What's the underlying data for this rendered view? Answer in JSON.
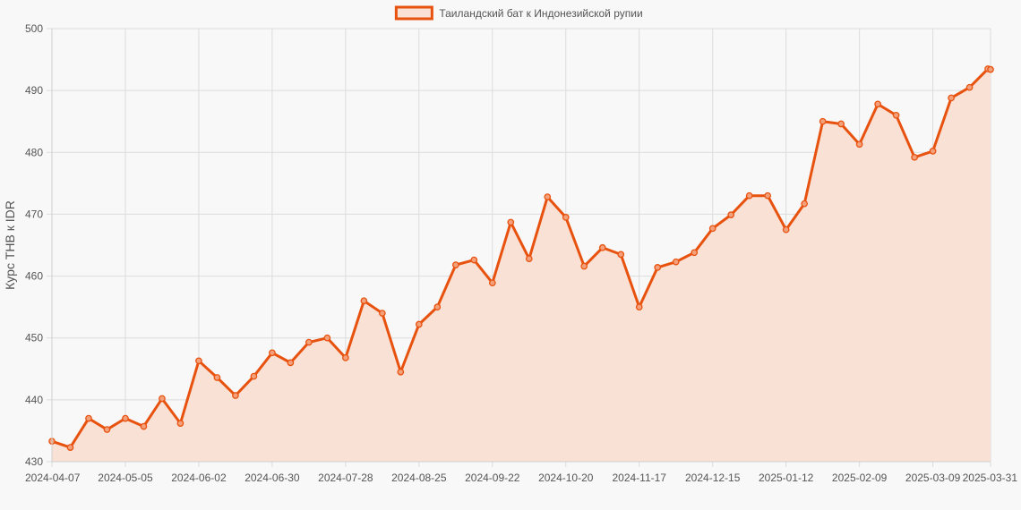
{
  "chart_data": {
    "type": "line",
    "title": "",
    "xlabel": "",
    "ylabel": "Курс THB к IDR",
    "ylim": [
      430,
      500
    ],
    "yticks": [
      430,
      440,
      450,
      460,
      470,
      480,
      490,
      500
    ],
    "xticks": [
      "2024-04-07",
      "2024-05-05",
      "2024-06-02",
      "2024-06-30",
      "2024-07-28",
      "2024-08-25",
      "2024-09-22",
      "2024-10-20",
      "2024-11-17",
      "2024-12-15",
      "2025-01-12",
      "2025-02-09",
      "2025-03-09",
      "2025-03-31"
    ],
    "grid": true,
    "legend_position": "top-center",
    "colors": {
      "line": "#e8520f",
      "fill": "#f9e1d6",
      "marker_fill": "#f4a07a"
    },
    "x": [
      "2024-04-07",
      "2024-04-14",
      "2024-04-21",
      "2024-04-28",
      "2024-05-05",
      "2024-05-12",
      "2024-05-19",
      "2024-05-26",
      "2024-06-02",
      "2024-06-09",
      "2024-06-16",
      "2024-06-23",
      "2024-06-30",
      "2024-07-07",
      "2024-07-14",
      "2024-07-21",
      "2024-07-28",
      "2024-08-04",
      "2024-08-11",
      "2024-08-18",
      "2024-08-25",
      "2024-09-01",
      "2024-09-08",
      "2024-09-15",
      "2024-09-22",
      "2024-09-29",
      "2024-10-06",
      "2024-10-13",
      "2024-10-20",
      "2024-10-27",
      "2024-11-03",
      "2024-11-10",
      "2024-11-17",
      "2024-11-24",
      "2024-12-01",
      "2024-12-08",
      "2024-12-15",
      "2024-12-22",
      "2024-12-29",
      "2025-01-05",
      "2025-01-12",
      "2025-01-19",
      "2025-01-26",
      "2025-02-02",
      "2025-02-09",
      "2025-02-16",
      "2025-02-23",
      "2025-03-02",
      "2025-03-09",
      "2025-03-16",
      "2025-03-23",
      "2025-03-30",
      "2025-03-31"
    ],
    "series": [
      {
        "name": "Таиландский бат к Индонезийской рупии",
        "values": [
          433.3,
          432.3,
          437.0,
          435.2,
          437.0,
          435.7,
          440.2,
          436.2,
          446.3,
          443.6,
          440.7,
          443.8,
          447.6,
          446.0,
          449.3,
          450.0,
          446.8,
          456.0,
          454.0,
          444.5,
          452.2,
          455.0,
          461.8,
          462.6,
          458.9,
          468.7,
          462.8,
          472.8,
          469.5,
          461.6,
          464.6,
          463.5,
          455.0,
          461.4,
          462.3,
          463.8,
          467.7,
          469.9,
          473.0,
          473.0,
          467.5,
          471.7,
          485.0,
          484.6,
          481.3,
          487.8,
          486.0,
          479.2,
          480.2,
          488.8,
          490.5,
          493.5,
          493.4
        ]
      }
    ]
  }
}
